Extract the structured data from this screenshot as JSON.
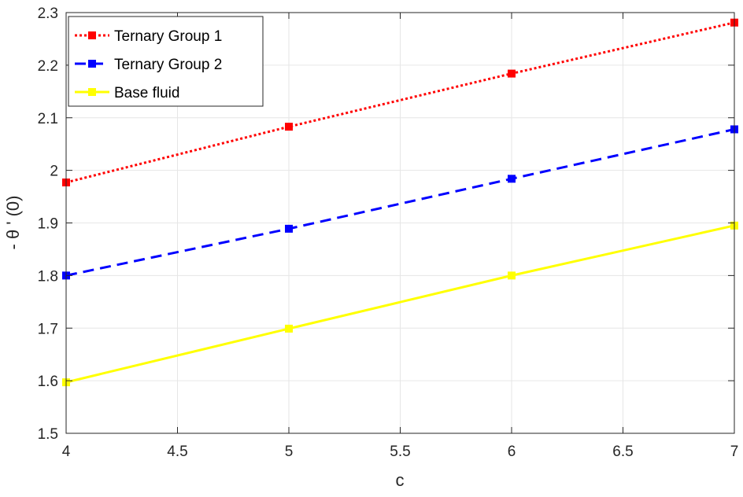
{
  "chart_data": {
    "type": "line",
    "title": "",
    "xlabel": "c",
    "ylabel": "- θ ' (0)",
    "xlim": [
      4,
      7
    ],
    "ylim": [
      1.5,
      2.3
    ],
    "x_ticks": [
      "4",
      "4.5",
      "5",
      "5.5",
      "6",
      "6.5",
      "7"
    ],
    "y_ticks": [
      "1.5",
      "1.6",
      "1.7",
      "1.8",
      "1.9",
      "2",
      "2.1",
      "2.2",
      "2.3"
    ],
    "grid": true,
    "legend_position": "top-left",
    "x": [
      4,
      5,
      6,
      7
    ],
    "series": [
      {
        "name": "Ternary Group 1",
        "values": [
          1.977,
          2.083,
          2.184,
          2.281
        ],
        "color": "#ff0000",
        "line_style": "dotted",
        "marker": "square"
      },
      {
        "name": "Ternary Group 2",
        "values": [
          1.8,
          1.889,
          1.984,
          2.078
        ],
        "color": "#0000ff",
        "line_style": "dashed",
        "marker": "square"
      },
      {
        "name": "Base fluid",
        "values": [
          1.597,
          1.699,
          1.8,
          1.895
        ],
        "color": "#ffff00",
        "line_style": "solid",
        "marker": "square"
      }
    ]
  }
}
